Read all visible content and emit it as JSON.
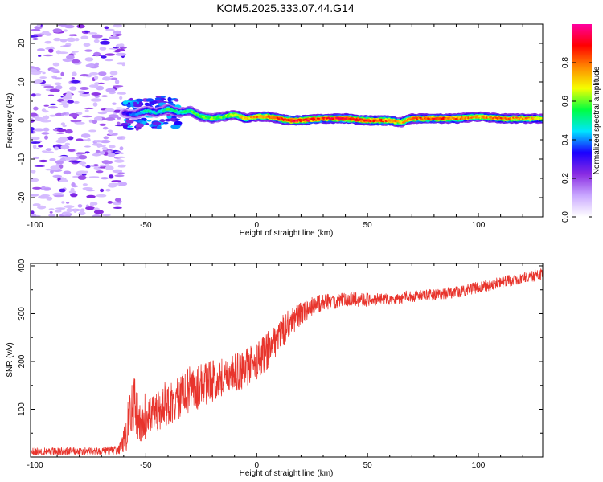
{
  "title": "KOM5.2025.333.07.44.G14",
  "chart_data": [
    {
      "type": "heatmap",
      "name": "spectrogram",
      "xlabel": "Height of straight line (km)",
      "ylabel": "Frequency (Hz)",
      "xlim": [
        -102,
        129
      ],
      "ylim": [
        -25,
        25
      ],
      "x_ticks": [
        -100,
        -50,
        0,
        50,
        100
      ],
      "y_ticks": [
        -20,
        -10,
        0,
        10,
        20
      ],
      "x_tick_labels": [
        "-100",
        "-50",
        "0",
        "50",
        "100"
      ],
      "y_tick_labels": [
        "-20",
        "-10",
        "0",
        "10",
        "20"
      ],
      "colorbar": {
        "label": "Normalized spectral amplitude",
        "range": [
          0,
          1
        ],
        "ticks": [
          0.0,
          0.2,
          0.4,
          0.6,
          0.8
        ],
        "tick_labels": [
          "0.0",
          "0.2",
          "0.4",
          "0.6",
          "0.8"
        ],
        "colors": [
          "#ffffff",
          "#c9a8ff",
          "#8a2be2",
          "#1a00ff",
          "#00e5ff",
          "#00ff40",
          "#f5ff00",
          "#ff8800",
          "#ff0000",
          "#ff00a0"
        ]
      },
      "ridge": {
        "description": "dominant frequency vs height",
        "x": [
          -60,
          -55,
          -50,
          -45,
          -40,
          -35,
          -30,
          -25,
          -20,
          -15,
          -10,
          -5,
          0,
          5,
          10,
          15,
          20,
          30,
          40,
          50,
          60,
          65,
          70,
          80,
          90,
          100,
          110,
          120,
          129
        ],
        "frequency": [
          2.0,
          1.5,
          2.5,
          2.0,
          3.0,
          2.0,
          2.5,
          1.0,
          0.5,
          1.0,
          1.5,
          0.5,
          1.0,
          1.0,
          0.5,
          0.0,
          0.0,
          0.5,
          0.5,
          0.0,
          0.0,
          -0.5,
          0.5,
          0.5,
          0.5,
          1.0,
          0.5,
          0.5,
          0.5
        ],
        "amplitude": [
          0.3,
          0.4,
          0.5,
          0.45,
          0.55,
          0.5,
          0.55,
          0.6,
          0.6,
          0.6,
          0.65,
          0.7,
          0.75,
          0.8,
          0.85,
          0.9,
          0.9,
          0.85,
          0.9,
          0.85,
          0.8,
          0.7,
          0.8,
          0.85,
          0.8,
          0.75,
          0.8,
          0.75,
          0.7
        ]
      },
      "noise_region_x": [
        -102,
        -60
      ]
    },
    {
      "type": "line",
      "name": "snr",
      "xlabel": "Height of straight line (km)",
      "ylabel": "SNR (v/v)",
      "xlim": [
        -102,
        129
      ],
      "ylim": [
        0,
        405
      ],
      "x_ticks": [
        -100,
        -50,
        0,
        50,
        100
      ],
      "y_ticks": [
        100,
        200,
        300,
        400
      ],
      "x_tick_labels": [
        "-100",
        "-50",
        "0",
        "50",
        "100"
      ],
      "y_tick_labels": [
        "100",
        "200",
        "300",
        "400"
      ],
      "color": "#e8342c",
      "series": [
        {
          "name": "SNR",
          "x": [
            -102,
            -90,
            -80,
            -70,
            -62,
            -58,
            -56,
            -53,
            -50,
            -45,
            -40,
            -35,
            -30,
            -25,
            -20,
            -15,
            -10,
            -5,
            0,
            5,
            10,
            15,
            20,
            25,
            30,
            35,
            40,
            50,
            55,
            60,
            70,
            80,
            90,
            100,
            110,
            120,
            129
          ],
          "center": [
            12,
            12,
            12,
            12,
            15,
            55,
            120,
            70,
            75,
            95,
            110,
            125,
            140,
            150,
            160,
            170,
            175,
            185,
            200,
            225,
            255,
            280,
            300,
            315,
            325,
            325,
            330,
            330,
            330,
            330,
            335,
            340,
            345,
            355,
            365,
            375,
            383
          ],
          "spread": [
            8,
            8,
            8,
            8,
            10,
            40,
            70,
            45,
            40,
            40,
            45,
            45,
            50,
            45,
            45,
            40,
            40,
            40,
            40,
            40,
            35,
            30,
            25,
            20,
            18,
            15,
            15,
            15,
            12,
            12,
            12,
            12,
            12,
            12,
            12,
            12,
            12
          ]
        }
      ]
    }
  ]
}
